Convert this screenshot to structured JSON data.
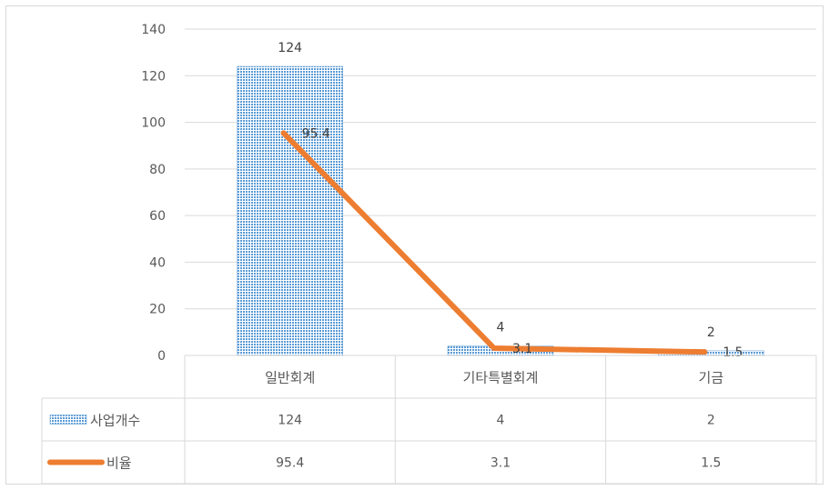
{
  "chart_data": {
    "type": "bar",
    "categories": [
      "일반회계",
      "기타특별회계",
      "기금"
    ],
    "series": [
      {
        "name": "사업개수",
        "type": "bar",
        "values": [
          124,
          4,
          2
        ],
        "labels": [
          "124",
          "4",
          "2"
        ],
        "color": "#5b9bd5",
        "pattern": "dotted"
      },
      {
        "name": "비율",
        "type": "line",
        "values": [
          95.4,
          3.1,
          1.5
        ],
        "labels": [
          "95.4",
          "3.1",
          "1.5"
        ],
        "color": "#ed7d31"
      }
    ],
    "ylim": [
      0,
      140
    ],
    "yticks": [
      0,
      20,
      40,
      60,
      80,
      100,
      120,
      140
    ],
    "grid": true,
    "legend": "data-table",
    "table": {
      "rows": [
        {
          "name": "사업개수",
          "cells": [
            "124",
            "4",
            "2"
          ]
        },
        {
          "name": "비율",
          "cells": [
            "95.4",
            "3.1",
            "1.5"
          ]
        }
      ]
    },
    "xlabel": "",
    "ylabel": "",
    "title": ""
  }
}
